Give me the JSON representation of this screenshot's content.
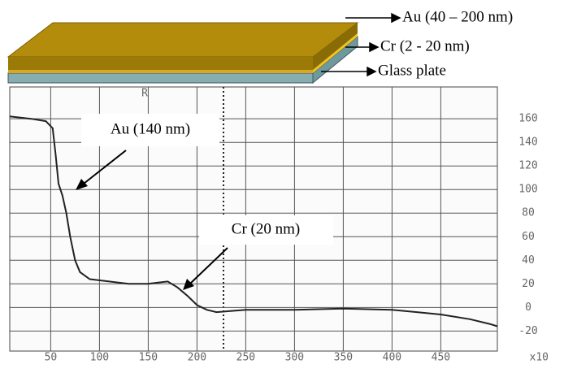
{
  "layers": [
    "Au (40 – 200 nm)",
    "Cr (2 - 20 nm)",
    "Glass plate"
  ],
  "chart_data": {
    "type": "line",
    "x": [
      8,
      30,
      45,
      52,
      55,
      58,
      62,
      66,
      70,
      75,
      80,
      90,
      110,
      130,
      150,
      160,
      170,
      180,
      190,
      200,
      210,
      220,
      250,
      300,
      350,
      400,
      450,
      480,
      500,
      508
    ],
    "series": [
      {
        "name": null,
        "color": "#222",
        "values": [
          162,
          160,
          158,
          152,
          130,
          105,
          95,
          80,
          60,
          40,
          30,
          24,
          22,
          20,
          20,
          21,
          22,
          17,
          10,
          2,
          -2,
          -4,
          -2,
          -2,
          -1,
          -2,
          -6,
          -10,
          -14,
          -16
        ]
      }
    ],
    "xlim": [
      8,
      508
    ],
    "xticks": [
      50,
      100,
      150,
      200,
      250,
      300,
      350,
      400,
      450
    ],
    "ylim": [
      -37,
      187
    ],
    "yticks": [
      160,
      140,
      120,
      100,
      80,
      60,
      40,
      20,
      0,
      -20
    ],
    "x_unit_label": "x10",
    "cursor_label": "R",
    "grid": true,
    "annotations": [
      "Au (140 nm)",
      "Cr (20 nm)"
    ]
  }
}
